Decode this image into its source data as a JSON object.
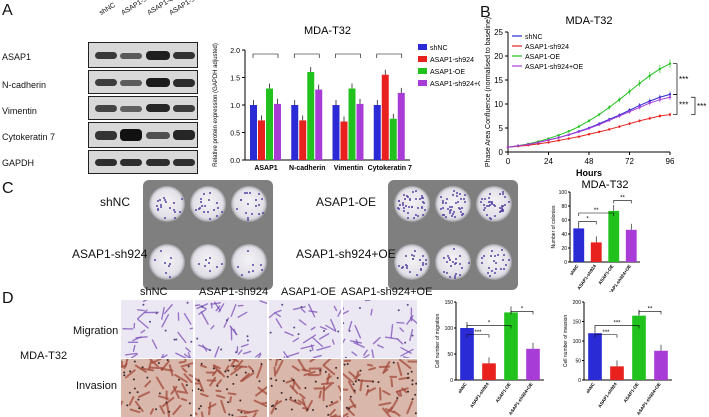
{
  "panels": {
    "a": "A",
    "b": "B",
    "c": "C",
    "d": "D"
  },
  "western_blot": {
    "lanes": [
      "shNC",
      "ASAP1-sh924",
      "ASAP1-OE",
      "ASAP1-sh924+OE"
    ],
    "rows": [
      "ASAP1",
      "N-cadherin",
      "Vimentin",
      "Cytokeratin 7",
      "GAPDH"
    ]
  },
  "colony": {
    "labels": [
      "shNC",
      "ASAP1-OE",
      "ASAP1-sh924",
      "ASAP1-sh924+OE"
    ]
  },
  "transwell": {
    "columns": [
      "shNC",
      "ASAP1-sh924",
      "ASAP1-OE",
      "ASAP1-sh924+OE"
    ],
    "row_labels": [
      "Migration",
      "Invasion"
    ],
    "cell_line": "MDA-T32"
  },
  "colors": {
    "shNC": "#2b2bd6",
    "sh924": "#e8201e",
    "OE": "#22c21e",
    "combo": "#a83cd6"
  },
  "chart_data": [
    {
      "id": "A-bar",
      "type": "bar",
      "title": "MDA-T32",
      "ylabel": "Relative protein expression (GAPDH adjusted)",
      "categories": [
        "ASAP1",
        "N-cadherin",
        "Vimentin",
        "Cytokeratin 7"
      ],
      "ylim": [
        0,
        2.0
      ],
      "yticks": [
        "0.0",
        "0.5",
        "1.0",
        "1.5",
        "2.0"
      ],
      "legend": [
        "shNC",
        "ASAP1-sh924",
        "ASAP1-OE",
        "ASAP1-sh924+OE"
      ],
      "series": [
        {
          "name": "shNC",
          "values": [
            1.0,
            1.0,
            1.0,
            1.0
          ]
        },
        {
          "name": "ASAP1-sh924",
          "values": [
            0.72,
            0.72,
            0.7,
            1.55
          ]
        },
        {
          "name": "ASAP1-OE",
          "values": [
            1.3,
            1.6,
            1.3,
            0.75
          ]
        },
        {
          "name": "ASAP1-sh924+OE",
          "values": [
            1.02,
            1.28,
            1.02,
            1.22
          ]
        }
      ]
    },
    {
      "id": "B-line",
      "type": "line",
      "title": "MDA-T32",
      "xlabel": "Hours",
      "ylabel": "Phase Area Confluence (normalised to baseline)",
      "x": [
        0,
        6,
        12,
        18,
        24,
        30,
        36,
        42,
        48,
        54,
        60,
        66,
        72,
        78,
        84,
        90,
        96
      ],
      "xticks": [
        "0",
        "24",
        "48",
        "72",
        "96"
      ],
      "yticks": [
        "0",
        "5",
        "10",
        "15",
        "20",
        "25"
      ],
      "ylim": [
        0,
        25
      ],
      "xlim": [
        0,
        96
      ],
      "legend": [
        "shNC",
        "ASAP1-sh924",
        "ASAP1-OE",
        "ASAP1-sh924+OE"
      ],
      "series": [
        {
          "name": "shNC",
          "values": [
            1,
            1.3,
            1.6,
            2.0,
            2.5,
            3.0,
            3.6,
            4.3,
            5.0,
            5.9,
            6.8,
            7.7,
            8.7,
            9.7,
            10.6,
            11.4,
            12.0
          ]
        },
        {
          "name": "ASAP1-sh924",
          "values": [
            1,
            1.2,
            1.4,
            1.7,
            2.0,
            2.4,
            2.8,
            3.2,
            3.7,
            4.2,
            4.7,
            5.3,
            5.9,
            6.5,
            7.0,
            7.5,
            7.8
          ]
        },
        {
          "name": "ASAP1-OE",
          "values": [
            1,
            1.3,
            1.7,
            2.2,
            2.8,
            3.5,
            4.3,
            5.3,
            6.5,
            7.8,
            9.3,
            10.9,
            12.6,
            14.3,
            15.9,
            17.3,
            18.4
          ]
        },
        {
          "name": "ASAP1-sh924+OE",
          "values": [
            1,
            1.3,
            1.6,
            2.0,
            2.5,
            3.0,
            3.6,
            4.2,
            4.9,
            5.7,
            6.6,
            7.5,
            8.4,
            9.3,
            10.2,
            10.9,
            11.4
          ]
        }
      ],
      "annotations": [
        "***",
        "***",
        "***"
      ]
    },
    {
      "id": "C-bar",
      "type": "bar",
      "title": "MDA-T32",
      "ylabel": "Number of colonies",
      "categories": [
        "shNC",
        "ASAP1-sh924",
        "ASAP1-OE",
        "ASAP1-sh924+OE"
      ],
      "values": [
        48,
        28,
        73,
        46
      ],
      "ylim": [
        0,
        100
      ],
      "yticks": [
        "0",
        "20",
        "40",
        "60",
        "80",
        "100"
      ],
      "sig": [
        "*",
        "**",
        "**"
      ]
    },
    {
      "id": "D-mig",
      "type": "bar",
      "title": "",
      "ylabel": "Cell number of migration",
      "categories": [
        "shNC",
        "ASAP1-sh924",
        "ASAP1-OE",
        "ASAP1-sh924+OE"
      ],
      "values": [
        100,
        32,
        130,
        60
      ],
      "ylim": [
        0,
        150
      ],
      "yticks": [
        "0",
        "50",
        "100",
        "150"
      ],
      "sig": [
        "***",
        "*",
        "*"
      ]
    },
    {
      "id": "D-inv",
      "type": "bar",
      "title": "",
      "ylabel": "Cell number of invasion",
      "categories": [
        "shNC",
        "ASAP1-sh924",
        "ASAP1-OE",
        "ASAP1-sh924+OE"
      ],
      "values": [
        120,
        35,
        165,
        75
      ],
      "ylim": [
        0,
        200
      ],
      "yticks": [
        "0",
        "50",
        "100",
        "150",
        "200"
      ],
      "sig": [
        "***",
        "***",
        "**"
      ]
    }
  ]
}
